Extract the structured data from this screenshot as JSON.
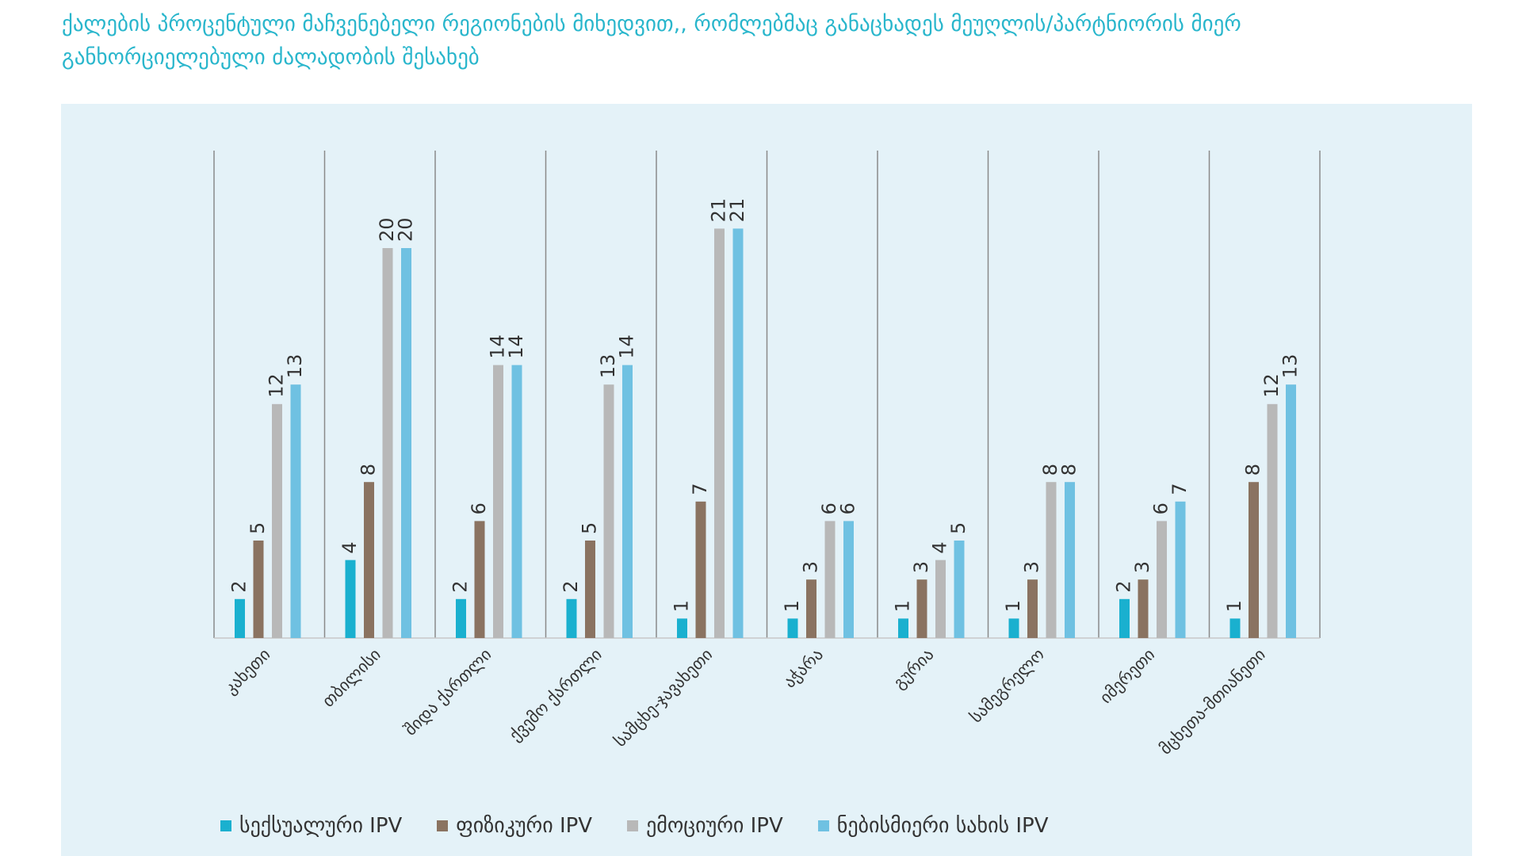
{
  "page": {
    "title_line1": "ქალების პროცენტული მაჩვენებელი რეგიონების მიხედვით,, რომლებმაც განაცხადეს მეუღლის/პარტნიორის მიერ",
    "title_line2": "განხორციელებული ძალადობის  შესახებ"
  },
  "chart_data": {
    "type": "bar",
    "title": "ქალების პროცენტული მაჩვენებელი რეგიონების მიხედვით,, რომლებმაც განაცხადეს მეუღლის/პარტნიორის მიერ განხორციელებული ძალადობის  შესახებ",
    "categories": [
      "კახეთი",
      "თბილისი",
      "შიდა ქართლი",
      "ქვემო ქართლი",
      "სამცხე-ჯავახეთი",
      "აჭარა",
      "გურია",
      "სამეგრელო",
      "იმერეთი",
      "მცხეთა-მთიანეთი"
    ],
    "series": [
      {
        "name": "სექსუალური IPV",
        "color": "#1ab0cf",
        "values": [
          2,
          4,
          2,
          2,
          1,
          1,
          1,
          1,
          2,
          1
        ]
      },
      {
        "name": "ფიზიკური IPV",
        "color": "#8a7361",
        "values": [
          5,
          8,
          6,
          5,
          7,
          3,
          3,
          3,
          3,
          8
        ]
      },
      {
        "name": "ემოციური IPV",
        "color": "#b8b8b8",
        "values": [
          12,
          20,
          14,
          13,
          21,
          6,
          4,
          8,
          6,
          12
        ]
      },
      {
        "name": "ნებისმიერი სახის IPV",
        "color": "#6fc1e2",
        "values": [
          13,
          20,
          14,
          14,
          21,
          6,
          5,
          8,
          7,
          13
        ]
      }
    ],
    "ylim": [
      0,
      25
    ],
    "grid": "vertical separators",
    "legend": "bottom"
  }
}
